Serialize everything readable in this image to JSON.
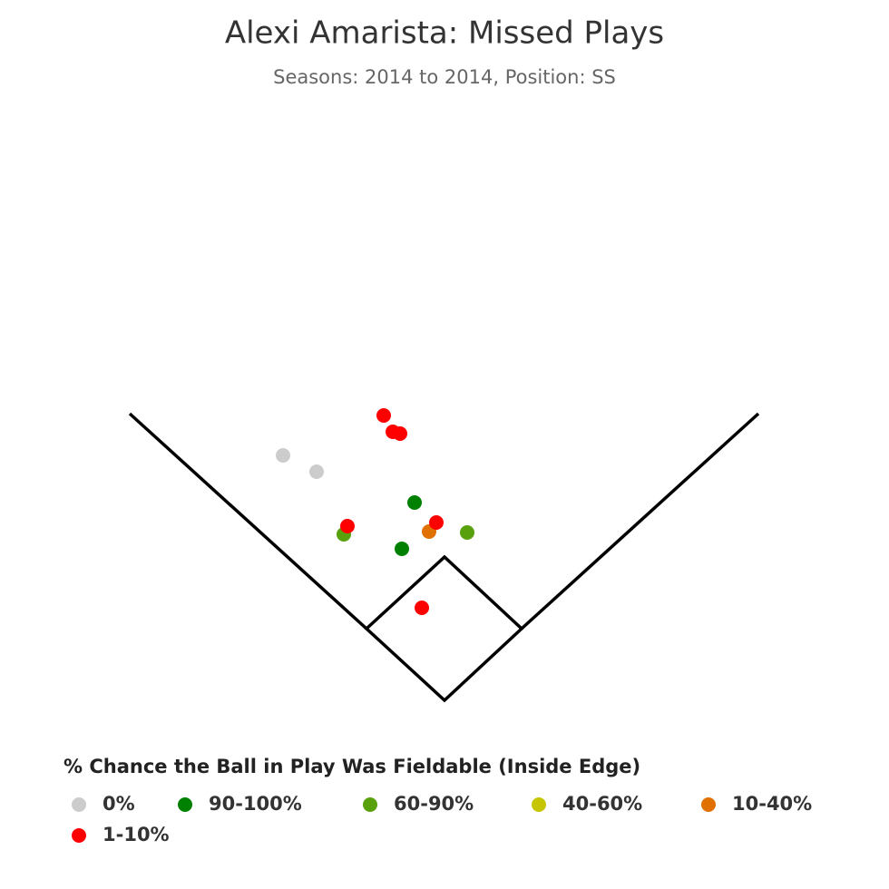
{
  "chart_data": {
    "type": "scatter",
    "title": "Alexi Amarista: Missed Plays",
    "subtitle": "Seasons: 2014 to 2014, Position: SS",
    "legend_title": "% Chance the Ball in Play Was Fieldable (Inside Edge)",
    "xlim": [
      -490,
      490
    ],
    "ylim": [
      0,
      640
    ],
    "series": [
      {
        "name": "0%",
        "color": "#cccccc",
        "x": [
          -178,
          -141
        ],
        "y": [
          270,
          252
        ]
      },
      {
        "name": "90-100%",
        "color": "#008000",
        "x": [
          -33,
          -47
        ],
        "y": [
          218,
          167
        ]
      },
      {
        "name": "60-90%",
        "color": "#58a10c",
        "x": [
          -111,
          25
        ],
        "y": [
          183,
          185
        ]
      },
      {
        "name": "40-60%",
        "color": "#c6c600",
        "x": [],
        "y": []
      },
      {
        "name": "10-40%",
        "color": "#e07000",
        "x": [
          -17
        ],
        "y": [
          186
        ]
      },
      {
        "name": "1-10%",
        "color": "#ff0000",
        "x": [
          -67,
          -57,
          -49,
          -107,
          -9,
          -25
        ],
        "y": [
          314,
          296,
          294,
          192,
          196,
          102
        ]
      }
    ]
  }
}
